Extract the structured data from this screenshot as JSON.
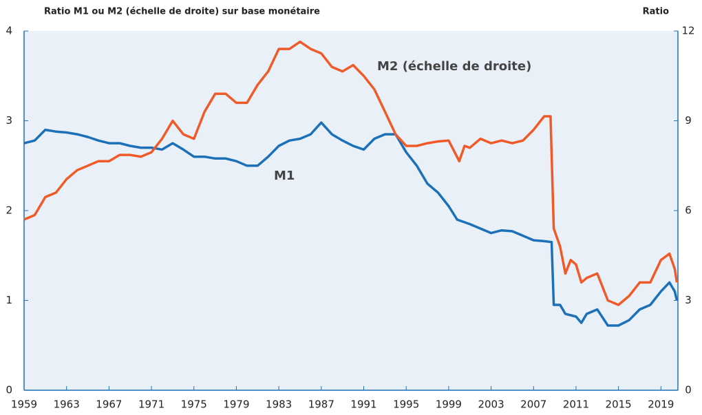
{
  "chart_data": {
    "type": "line",
    "title": "Ratio M1 ou M2 (échelle de droite) sur base monétaire",
    "y2_axis_label": "Ratio",
    "annotations": [
      "M1",
      "M2 (échelle de droite)"
    ],
    "xlim": [
      1959,
      2020.6
    ],
    "xticks": [
      1959,
      1963,
      1967,
      1971,
      1975,
      1979,
      1983,
      1987,
      1991,
      1995,
      1999,
      2003,
      2007,
      2011,
      2015,
      2019
    ],
    "ylim": [
      0,
      4
    ],
    "yticks": [
      0,
      1,
      2,
      3,
      4
    ],
    "y2lim": [
      0,
      12
    ],
    "y2ticks": [
      0,
      3,
      6,
      9,
      12
    ],
    "series": [
      {
        "name": "M1",
        "color": "#1c70b8",
        "x": [
          1959,
          1960,
          1961,
          1962,
          1963,
          1964,
          1965,
          1966,
          1967,
          1968,
          1969,
          1970,
          1971,
          1972,
          1973,
          1974,
          1975,
          1976,
          1977,
          1978,
          1979,
          1980,
          1981,
          1982,
          1983,
          1984,
          1985,
          1986,
          1987,
          1988,
          1989,
          1990,
          1991,
          1992,
          1993,
          1994,
          1995,
          1996,
          1997,
          1998,
          1999,
          1999.8,
          2001,
          2002,
          2003,
          2004,
          2005,
          2006,
          2007,
          2008,
          2008.7,
          2008.9,
          2009.5,
          2010,
          2011,
          2011.5,
          2012,
          2013,
          2014,
          2015,
          2016,
          2017,
          2018,
          2019,
          2019.8,
          2020.3,
          2020.5
        ],
        "values": [
          2.75,
          2.78,
          2.9,
          2.88,
          2.87,
          2.85,
          2.82,
          2.78,
          2.75,
          2.75,
          2.72,
          2.7,
          2.7,
          2.68,
          2.75,
          2.68,
          2.6,
          2.6,
          2.58,
          2.58,
          2.55,
          2.5,
          2.5,
          2.6,
          2.72,
          2.78,
          2.8,
          2.85,
          2.98,
          2.85,
          2.78,
          2.72,
          2.68,
          2.8,
          2.85,
          2.85,
          2.65,
          2.5,
          2.3,
          2.2,
          2.05,
          1.9,
          1.85,
          1.8,
          1.75,
          1.78,
          1.77,
          1.72,
          1.67,
          1.66,
          1.65,
          0.95,
          0.95,
          0.85,
          0.82,
          0.75,
          0.85,
          0.9,
          0.72,
          0.72,
          0.78,
          0.9,
          0.95,
          1.1,
          1.2,
          1.1,
          1.0
        ]
      },
      {
        "name": "M2",
        "color": "#f05a28",
        "axis": "y2",
        "x": [
          1959,
          1960,
          1961,
          1962,
          1963,
          1964,
          1965,
          1966,
          1967,
          1968,
          1969,
          1970,
          1971,
          1972,
          1973,
          1974,
          1975,
          1976,
          1977,
          1978,
          1979,
          1980,
          1981,
          1982,
          1983,
          1984,
          1985,
          1986,
          1987,
          1988,
          1989,
          1990,
          1991,
          1992,
          1993,
          1994,
          1995,
          1996,
          1997,
          1998,
          1999,
          2000,
          2000.5,
          2001,
          2002,
          2003,
          2004,
          2005,
          2006,
          2007,
          2008,
          2008.6,
          2008.9,
          2009.5,
          2010,
          2010.5,
          2011,
          2011.5,
          2012,
          2013,
          2014,
          2015,
          2016,
          2017,
          2018,
          2019,
          2019.8,
          2020.3,
          2020.5
        ],
        "values": [
          5.7,
          5.85,
          6.45,
          6.6,
          7.05,
          7.35,
          7.5,
          7.65,
          7.65,
          7.86,
          7.86,
          7.8,
          7.95,
          8.4,
          9.0,
          8.55,
          8.4,
          9.3,
          9.9,
          9.9,
          9.6,
          9.6,
          10.2,
          10.65,
          11.4,
          11.4,
          11.64,
          11.4,
          11.25,
          10.8,
          10.65,
          10.86,
          10.5,
          10.05,
          9.3,
          8.55,
          8.16,
          8.16,
          8.25,
          8.31,
          8.34,
          7.65,
          8.16,
          8.1,
          8.4,
          8.25,
          8.34,
          8.25,
          8.34,
          8.7,
          9.15,
          9.15,
          5.4,
          4.8,
          3.9,
          4.35,
          4.2,
          3.6,
          3.75,
          3.9,
          3.0,
          2.85,
          3.15,
          3.6,
          3.6,
          4.35,
          4.56,
          4.05,
          3.6
        ]
      }
    ]
  }
}
